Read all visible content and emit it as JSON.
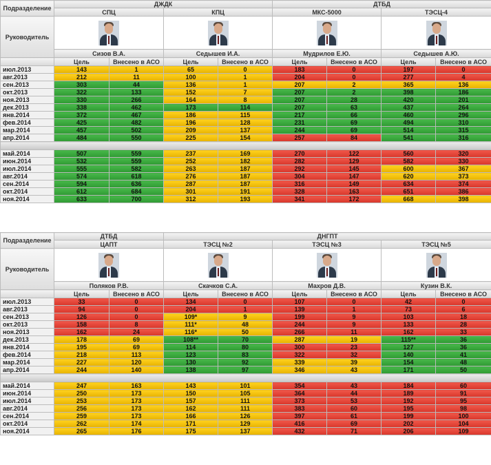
{
  "labels": {
    "division": "Подразделение",
    "manager": "Руководитель",
    "goal": "Цель",
    "entered": "Внесено в АСО"
  },
  "months_a": [
    "июл.2013",
    "авг.2013",
    "сен.2013",
    "окт.2013",
    "ноя.2013",
    "дек.2013",
    "янв.2014",
    "фев.2014",
    "мар.2014",
    "апр.2014"
  ],
  "months_b": [
    "май.2014",
    "июн.2014",
    "июл.2014",
    "авг.2014",
    "сен.2014",
    "окт.2014",
    "ноя.2014"
  ],
  "colors": {
    "red": "#e23d30",
    "yellow": "#f3c20b",
    "green": "#3aa83d"
  },
  "sections": [
    {
      "groups": [
        {
          "name": "ДЖДК",
          "span": 2
        },
        {
          "name": "ДТБД",
          "span": 2
        }
      ],
      "divisions": [
        {
          "name": "СПЦ",
          "manager": "Сизов В.А.",
          "photo": "manager-photo",
          "rows_a": [
            [
              "143",
              "1",
              "y"
            ],
            [
              "212",
              "11",
              "y"
            ],
            [
              "303",
              "44",
              "g"
            ],
            [
              "322",
              "133",
              "g"
            ],
            [
              "330",
              "266",
              "g"
            ],
            [
              "338",
              "462",
              "g"
            ],
            [
              "372",
              "467",
              "g"
            ],
            [
              "425",
              "482",
              "g"
            ],
            [
              "457",
              "502",
              "g"
            ],
            [
              "484",
              "550",
              "g"
            ]
          ],
          "rows_b": [
            [
              "507",
              "559",
              "g"
            ],
            [
              "532",
              "559",
              "g"
            ],
            [
              "555",
              "582",
              "g"
            ],
            [
              "574",
              "618",
              "g"
            ],
            [
              "594",
              "636",
              "g"
            ],
            [
              "612",
              "684",
              "g"
            ],
            [
              "633",
              "700",
              "g"
            ]
          ]
        },
        {
          "name": "КПЦ",
          "manager": "Седышев И.А.",
          "photo": "manager-photo",
          "rows_a": [
            [
              "65",
              "0",
              "y"
            ],
            [
              "100",
              "1",
              "y"
            ],
            [
              "136",
              "1",
              "y"
            ],
            [
              "152",
              "7",
              "y"
            ],
            [
              "164",
              "8",
              "y"
            ],
            [
              "173",
              "114",
              "g"
            ],
            [
              "186",
              "115",
              "y"
            ],
            [
              "196",
              "128",
              "y"
            ],
            [
              "209",
              "137",
              "y"
            ],
            [
              "225",
              "154",
              "y"
            ]
          ],
          "rows_b": [
            [
              "237",
              "169",
              "y"
            ],
            [
              "252",
              "182",
              "y"
            ],
            [
              "263",
              "187",
              "y"
            ],
            [
              "276",
              "187",
              "y"
            ],
            [
              "287",
              "187",
              "y"
            ],
            [
              "301",
              "191",
              "y"
            ],
            [
              "312",
              "193",
              "y"
            ]
          ]
        },
        {
          "name": "МКС-5000",
          "manager": "Мудрилов Е.Ю.",
          "photo": "manager-photo",
          "rows_a": [
            [
              "183",
              "0",
              "r"
            ],
            [
              "204",
              "0",
              "r"
            ],
            [
              "207",
              "2",
              "y"
            ],
            [
              "207",
              "2",
              "g"
            ],
            [
              "207",
              "28",
              "g"
            ],
            [
              "207",
              "63",
              "g"
            ],
            [
              "217",
              "66",
              "g"
            ],
            [
              "231",
              "69",
              "g"
            ],
            [
              "244",
              "69",
              "g"
            ],
            [
              "257",
              "84",
              "r"
            ]
          ],
          "rows_b": [
            [
              "270",
              "122",
              "r"
            ],
            [
              "282",
              "129",
              "r"
            ],
            [
              "292",
              "145",
              "r"
            ],
            [
              "304",
              "147",
              "r"
            ],
            [
              "316",
              "149",
              "r"
            ],
            [
              "328",
              "163",
              "r"
            ],
            [
              "341",
              "172",
              "r"
            ]
          ]
        },
        {
          "name": "ТЭСЦ-4",
          "manager": "Седышев А.Ю.",
          "photo": "manager-photo",
          "rows_a": [
            [
              "197",
              "0",
              "r"
            ],
            [
              "277",
              "4",
              "r"
            ],
            [
              "365",
              "136",
              "y"
            ],
            [
              "398",
              "186",
              "g"
            ],
            [
              "420",
              "201",
              "g"
            ],
            [
              "437",
              "264",
              "g"
            ],
            [
              "460",
              "296",
              "g"
            ],
            [
              "494",
              "310",
              "g"
            ],
            [
              "514",
              "315",
              "g"
            ],
            [
              "541",
              "316",
              "g"
            ]
          ],
          "rows_b": [
            [
              "560",
              "320",
              "r"
            ],
            [
              "582",
              "330",
              "r"
            ],
            [
              "600",
              "367",
              "y"
            ],
            [
              "620",
              "373",
              "y"
            ],
            [
              "634",
              "374",
              "r"
            ],
            [
              "651",
              "386",
              "r"
            ],
            [
              "668",
              "398",
              "y"
            ]
          ]
        }
      ]
    },
    {
      "groups": [
        {
          "name": "ДТБД",
          "span": 1
        },
        {
          "name": "ДНГПТ",
          "span": 3
        }
      ],
      "divisions": [
        {
          "name": "ЦАПТ",
          "manager": "Поляков Р.В.",
          "photo": "manager-photo",
          "rows_a": [
            [
              "33",
              "0",
              "r"
            ],
            [
              "94",
              "0",
              "r"
            ],
            [
              "126",
              "0",
              "r"
            ],
            [
              "158",
              "8",
              "r"
            ],
            [
              "162",
              "24",
              "r"
            ],
            [
              "178",
              "69",
              "y"
            ],
            [
              "195",
              "69",
              "y"
            ],
            [
              "218",
              "113",
              "y"
            ],
            [
              "227",
              "120",
              "y"
            ],
            [
              "244",
              "140",
              "y"
            ]
          ],
          "rows_b": [
            [
              "247",
              "163",
              "y"
            ],
            [
              "250",
              "173",
              "y"
            ],
            [
              "253",
              "173",
              "y"
            ],
            [
              "256",
              "173",
              "y"
            ],
            [
              "259",
              "173",
              "y"
            ],
            [
              "262",
              "174",
              "y"
            ],
            [
              "265",
              "176",
              "y"
            ]
          ]
        },
        {
          "name": "ТЭСЦ №2",
          "manager": "Скачков С.А.",
          "photo": "manager-photo",
          "rows_a": [
            [
              "134",
              "0",
              "r"
            ],
            [
              "204",
              "1",
              "r"
            ],
            [
              "109*",
              "9",
              "y"
            ],
            [
              "111*",
              "48",
              "y"
            ],
            [
              "116*",
              "50",
              "y"
            ],
            [
              "108**",
              "70",
              "g"
            ],
            [
              "114",
              "80",
              "g"
            ],
            [
              "123",
              "83",
              "g"
            ],
            [
              "130",
              "92",
              "g"
            ],
            [
              "138",
              "97",
              "g"
            ]
          ],
          "rows_b": [
            [
              "143",
              "101",
              "y"
            ],
            [
              "150",
              "105",
              "y"
            ],
            [
              "157",
              "111",
              "y"
            ],
            [
              "162",
              "111",
              "y"
            ],
            [
              "166",
              "126",
              "y"
            ],
            [
              "171",
              "129",
              "y"
            ],
            [
              "175",
              "137",
              "y"
            ]
          ]
        },
        {
          "name": "ТЭСЦ №3",
          "manager": "Махров Д.В.",
          "photo": "manager-photo",
          "rows_a": [
            [
              "107",
              "0",
              "r"
            ],
            [
              "139",
              "1",
              "r"
            ],
            [
              "199",
              "9",
              "r"
            ],
            [
              "244",
              "9",
              "r"
            ],
            [
              "266",
              "11",
              "r"
            ],
            [
              "287",
              "19",
              "y"
            ],
            [
              "300",
              "23",
              "r"
            ],
            [
              "322",
              "32",
              "r"
            ],
            [
              "339",
              "39",
              "y"
            ],
            [
              "346",
              "43",
              "y"
            ]
          ],
          "rows_b": [
            [
              "354",
              "43",
              "r"
            ],
            [
              "364",
              "44",
              "r"
            ],
            [
              "373",
              "53",
              "r"
            ],
            [
              "383",
              "60",
              "r"
            ],
            [
              "397",
              "61",
              "r"
            ],
            [
              "416",
              "69",
              "r"
            ],
            [
              "432",
              "71",
              "r"
            ]
          ]
        },
        {
          "name": "ТЭСЦ №5",
          "manager": "Кузин В.К.",
          "photo": "manager-photo",
          "rows_a": [
            [
              "42",
              "0",
              "r"
            ],
            [
              "73",
              "6",
              "r"
            ],
            [
              "103",
              "18",
              "r"
            ],
            [
              "133",
              "28",
              "r"
            ],
            [
              "162",
              "33",
              "r"
            ],
            [
              "115**",
              "36",
              "g"
            ],
            [
              "127",
              "36",
              "g"
            ],
            [
              "140",
              "41",
              "g"
            ],
            [
              "154",
              "48",
              "g"
            ],
            [
              "171",
              "50",
              "g"
            ]
          ],
          "rows_b": [
            [
              "184",
              "60",
              "r"
            ],
            [
              "189",
              "91",
              "r"
            ],
            [
              "192",
              "95",
              "r"
            ],
            [
              "195",
              "98",
              "r"
            ],
            [
              "199",
              "100",
              "r"
            ],
            [
              "202",
              "104",
              "r"
            ],
            [
              "206",
              "109",
              "r"
            ]
          ]
        }
      ]
    }
  ]
}
